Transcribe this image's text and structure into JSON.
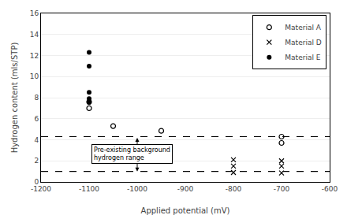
{
  "chart_data": {
    "type": "scatter",
    "xlabel": "Applied potential (mV)",
    "ylabel": "Hydrogen content (mls/STP)",
    "xlim": [
      -1200,
      -600
    ],
    "ylim": [
      0,
      16
    ],
    "xticks": [
      -1200,
      -1100,
      -1000,
      -900,
      -800,
      -700,
      -600
    ],
    "yticks": [
      0,
      2,
      4,
      6,
      8,
      10,
      12,
      14,
      16
    ],
    "grid": "y",
    "legend": "upper right",
    "series": [
      {
        "name": "Material A",
        "marker": "circle-open",
        "color": "black",
        "x": [
          -1100,
          -1100,
          -1050,
          -950,
          -700,
          -700
        ],
        "values": [
          7.6,
          7.0,
          5.3,
          4.85,
          4.3,
          3.7
        ]
      },
      {
        "name": "Material D",
        "marker": "x",
        "color": "black",
        "x": [
          -800,
          -800,
          -800,
          -700,
          -700,
          -700
        ],
        "values": [
          2.1,
          1.5,
          0.9,
          2.0,
          1.5,
          0.85
        ]
      },
      {
        "name": "Material E",
        "marker": "circle",
        "color": "black",
        "x": [
          -1100,
          -1100,
          -1100,
          -1100,
          -1100
        ],
        "values": [
          12.3,
          11.0,
          8.5,
          7.9,
          7.55
        ]
      }
    ],
    "reference_lines": [
      {
        "y": 4.3,
        "line_style": "dashed",
        "color": "black"
      },
      {
        "y": 1.0,
        "line_style": "dashed",
        "color": "black"
      }
    ],
    "arrow": {
      "x": -1000,
      "y_from": 4.3,
      "y_to": 1.0,
      "color": "black"
    },
    "annotations": [
      {
        "text": "Pre-existing background\nhydrogen range",
        "x": -1095,
        "y": 2.65
      }
    ]
  }
}
